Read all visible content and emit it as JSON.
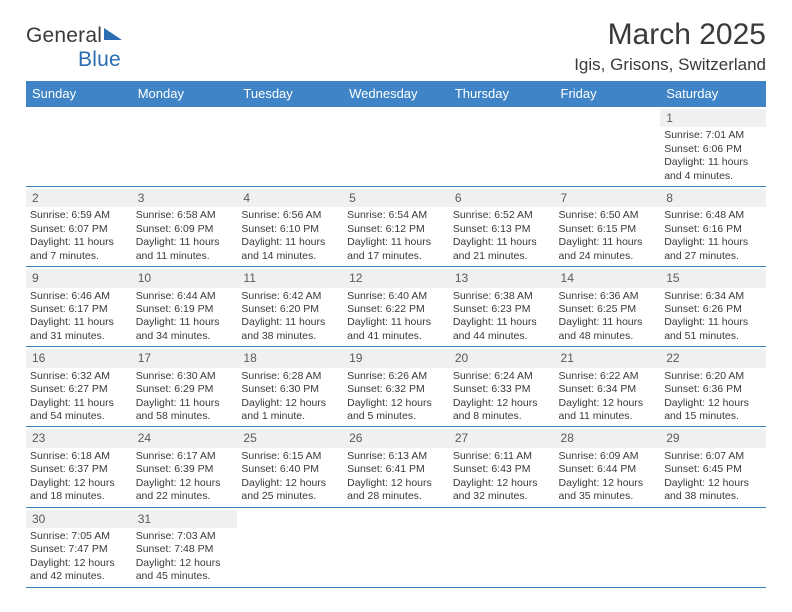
{
  "header": {
    "logo_general": "Genera",
    "logo_l": "l",
    "logo_blue": "Blue",
    "month_title": "March 2025",
    "location": "Igis, Grisons, Switzerland"
  },
  "styling": {
    "header_bg": "#3e84c6",
    "header_text": "#ffffff",
    "daynum_bg": "#eef0f1",
    "grid_line": "#3e84c6",
    "body_text": "#3a3a3a",
    "cell_fontsize": 10.5,
    "th_fontsize": 13,
    "title_fontsize": 30,
    "location_fontsize": 17
  },
  "weekdays": [
    "Sunday",
    "Monday",
    "Tuesday",
    "Wednesday",
    "Thursday",
    "Friday",
    "Saturday"
  ],
  "weeks": [
    [
      {
        "day": "",
        "sunrise": "",
        "sunset": "",
        "daylight": ""
      },
      {
        "day": "",
        "sunrise": "",
        "sunset": "",
        "daylight": ""
      },
      {
        "day": "",
        "sunrise": "",
        "sunset": "",
        "daylight": ""
      },
      {
        "day": "",
        "sunrise": "",
        "sunset": "",
        "daylight": ""
      },
      {
        "day": "",
        "sunrise": "",
        "sunset": "",
        "daylight": ""
      },
      {
        "day": "",
        "sunrise": "",
        "sunset": "",
        "daylight": ""
      },
      {
        "day": "1",
        "sunrise": "Sunrise: 7:01 AM",
        "sunset": "Sunset: 6:06 PM",
        "daylight": "Daylight: 11 hours and 4 minutes."
      }
    ],
    [
      {
        "day": "2",
        "sunrise": "Sunrise: 6:59 AM",
        "sunset": "Sunset: 6:07 PM",
        "daylight": "Daylight: 11 hours and 7 minutes."
      },
      {
        "day": "3",
        "sunrise": "Sunrise: 6:58 AM",
        "sunset": "Sunset: 6:09 PM",
        "daylight": "Daylight: 11 hours and 11 minutes."
      },
      {
        "day": "4",
        "sunrise": "Sunrise: 6:56 AM",
        "sunset": "Sunset: 6:10 PM",
        "daylight": "Daylight: 11 hours and 14 minutes."
      },
      {
        "day": "5",
        "sunrise": "Sunrise: 6:54 AM",
        "sunset": "Sunset: 6:12 PM",
        "daylight": "Daylight: 11 hours and 17 minutes."
      },
      {
        "day": "6",
        "sunrise": "Sunrise: 6:52 AM",
        "sunset": "Sunset: 6:13 PM",
        "daylight": "Daylight: 11 hours and 21 minutes."
      },
      {
        "day": "7",
        "sunrise": "Sunrise: 6:50 AM",
        "sunset": "Sunset: 6:15 PM",
        "daylight": "Daylight: 11 hours and 24 minutes."
      },
      {
        "day": "8",
        "sunrise": "Sunrise: 6:48 AM",
        "sunset": "Sunset: 6:16 PM",
        "daylight": "Daylight: 11 hours and 27 minutes."
      }
    ],
    [
      {
        "day": "9",
        "sunrise": "Sunrise: 6:46 AM",
        "sunset": "Sunset: 6:17 PM",
        "daylight": "Daylight: 11 hours and 31 minutes."
      },
      {
        "day": "10",
        "sunrise": "Sunrise: 6:44 AM",
        "sunset": "Sunset: 6:19 PM",
        "daylight": "Daylight: 11 hours and 34 minutes."
      },
      {
        "day": "11",
        "sunrise": "Sunrise: 6:42 AM",
        "sunset": "Sunset: 6:20 PM",
        "daylight": "Daylight: 11 hours and 38 minutes."
      },
      {
        "day": "12",
        "sunrise": "Sunrise: 6:40 AM",
        "sunset": "Sunset: 6:22 PM",
        "daylight": "Daylight: 11 hours and 41 minutes."
      },
      {
        "day": "13",
        "sunrise": "Sunrise: 6:38 AM",
        "sunset": "Sunset: 6:23 PM",
        "daylight": "Daylight: 11 hours and 44 minutes."
      },
      {
        "day": "14",
        "sunrise": "Sunrise: 6:36 AM",
        "sunset": "Sunset: 6:25 PM",
        "daylight": "Daylight: 11 hours and 48 minutes."
      },
      {
        "day": "15",
        "sunrise": "Sunrise: 6:34 AM",
        "sunset": "Sunset: 6:26 PM",
        "daylight": "Daylight: 11 hours and 51 minutes."
      }
    ],
    [
      {
        "day": "16",
        "sunrise": "Sunrise: 6:32 AM",
        "sunset": "Sunset: 6:27 PM",
        "daylight": "Daylight: 11 hours and 54 minutes."
      },
      {
        "day": "17",
        "sunrise": "Sunrise: 6:30 AM",
        "sunset": "Sunset: 6:29 PM",
        "daylight": "Daylight: 11 hours and 58 minutes."
      },
      {
        "day": "18",
        "sunrise": "Sunrise: 6:28 AM",
        "sunset": "Sunset: 6:30 PM",
        "daylight": "Daylight: 12 hours and 1 minute."
      },
      {
        "day": "19",
        "sunrise": "Sunrise: 6:26 AM",
        "sunset": "Sunset: 6:32 PM",
        "daylight": "Daylight: 12 hours and 5 minutes."
      },
      {
        "day": "20",
        "sunrise": "Sunrise: 6:24 AM",
        "sunset": "Sunset: 6:33 PM",
        "daylight": "Daylight: 12 hours and 8 minutes."
      },
      {
        "day": "21",
        "sunrise": "Sunrise: 6:22 AM",
        "sunset": "Sunset: 6:34 PM",
        "daylight": "Daylight: 12 hours and 11 minutes."
      },
      {
        "day": "22",
        "sunrise": "Sunrise: 6:20 AM",
        "sunset": "Sunset: 6:36 PM",
        "daylight": "Daylight: 12 hours and 15 minutes."
      }
    ],
    [
      {
        "day": "23",
        "sunrise": "Sunrise: 6:18 AM",
        "sunset": "Sunset: 6:37 PM",
        "daylight": "Daylight: 12 hours and 18 minutes."
      },
      {
        "day": "24",
        "sunrise": "Sunrise: 6:17 AM",
        "sunset": "Sunset: 6:39 PM",
        "daylight": "Daylight: 12 hours and 22 minutes."
      },
      {
        "day": "25",
        "sunrise": "Sunrise: 6:15 AM",
        "sunset": "Sunset: 6:40 PM",
        "daylight": "Daylight: 12 hours and 25 minutes."
      },
      {
        "day": "26",
        "sunrise": "Sunrise: 6:13 AM",
        "sunset": "Sunset: 6:41 PM",
        "daylight": "Daylight: 12 hours and 28 minutes."
      },
      {
        "day": "27",
        "sunrise": "Sunrise: 6:11 AM",
        "sunset": "Sunset: 6:43 PM",
        "daylight": "Daylight: 12 hours and 32 minutes."
      },
      {
        "day": "28",
        "sunrise": "Sunrise: 6:09 AM",
        "sunset": "Sunset: 6:44 PM",
        "daylight": "Daylight: 12 hours and 35 minutes."
      },
      {
        "day": "29",
        "sunrise": "Sunrise: 6:07 AM",
        "sunset": "Sunset: 6:45 PM",
        "daylight": "Daylight: 12 hours and 38 minutes."
      }
    ],
    [
      {
        "day": "30",
        "sunrise": "Sunrise: 7:05 AM",
        "sunset": "Sunset: 7:47 PM",
        "daylight": "Daylight: 12 hours and 42 minutes."
      },
      {
        "day": "31",
        "sunrise": "Sunrise: 7:03 AM",
        "sunset": "Sunset: 7:48 PM",
        "daylight": "Daylight: 12 hours and 45 minutes."
      },
      {
        "day": "",
        "sunrise": "",
        "sunset": "",
        "daylight": ""
      },
      {
        "day": "",
        "sunrise": "",
        "sunset": "",
        "daylight": ""
      },
      {
        "day": "",
        "sunrise": "",
        "sunset": "",
        "daylight": ""
      },
      {
        "day": "",
        "sunrise": "",
        "sunset": "",
        "daylight": ""
      },
      {
        "day": "",
        "sunrise": "",
        "sunset": "",
        "daylight": ""
      }
    ]
  ]
}
